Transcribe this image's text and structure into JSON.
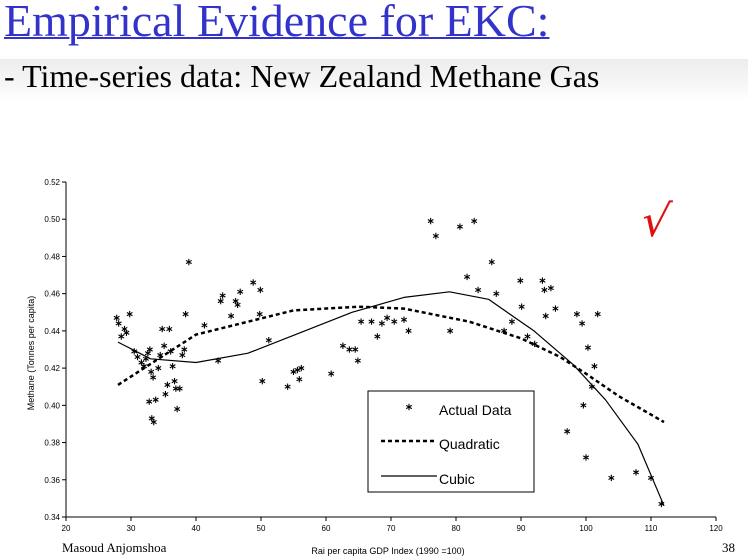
{
  "slide": {
    "title": "Empirical Evidence for EKC:",
    "subtitle": "- Time-series data: New Zealand Methane Gas",
    "author": "Masoud Anjomshoa",
    "slide_number": "38",
    "check_mark": "√"
  },
  "colors": {
    "title": "#3333cc",
    "check": "#e01010",
    "series": "#000000"
  },
  "chart_data": {
    "type": "scatter",
    "xlabel": "Rai per capita GDP Index (1990 =100)",
    "ylabel": "Methane (Tonnes per capita)",
    "xlim": [
      20,
      120
    ],
    "ylim": [
      0.34,
      0.52
    ],
    "x_ticks": [
      "20",
      "30",
      "40",
      "50",
      "60",
      "70",
      "80",
      "90",
      "100",
      "110",
      "120"
    ],
    "y_ticks": [
      "0.34",
      "0.36",
      "0.38",
      "0.40",
      "0.42",
      "0.44",
      "0.46",
      "0.48",
      "0.50",
      "0.52"
    ],
    "legend": {
      "placement": "bottom-center",
      "entries": [
        "Actual Data",
        "Quadratic",
        "Cubic"
      ]
    },
    "series": [
      {
        "name": "Actual Data",
        "marker": "asterisk",
        "points": [
          [
            27.8,
            0.447
          ],
          [
            28.1,
            0.444
          ],
          [
            28.5,
            0.437
          ],
          [
            29.0,
            0.441
          ],
          [
            29.3,
            0.439
          ],
          [
            29.8,
            0.449
          ],
          [
            30.5,
            0.429
          ],
          [
            31.0,
            0.426
          ],
          [
            31.6,
            0.423
          ],
          [
            32.0,
            0.421
          ],
          [
            32.3,
            0.425
          ],
          [
            32.6,
            0.428
          ],
          [
            32.9,
            0.43
          ],
          [
            33.1,
            0.418
          ],
          [
            33.4,
            0.415
          ],
          [
            32.8,
            0.402
          ],
          [
            33.2,
            0.393
          ],
          [
            33.5,
            0.391
          ],
          [
            33.8,
            0.403
          ],
          [
            34.2,
            0.42
          ],
          [
            34.5,
            0.427
          ],
          [
            34.8,
            0.441
          ],
          [
            35.1,
            0.432
          ],
          [
            35.3,
            0.406
          ],
          [
            35.6,
            0.411
          ],
          [
            35.9,
            0.441
          ],
          [
            36.1,
            0.429
          ],
          [
            36.4,
            0.421
          ],
          [
            36.7,
            0.413
          ],
          [
            36.9,
            0.409
          ],
          [
            37.1,
            0.398
          ],
          [
            37.5,
            0.409
          ],
          [
            37.9,
            0.427
          ],
          [
            38.2,
            0.43
          ],
          [
            38.4,
            0.449
          ],
          [
            38.9,
            0.477
          ],
          [
            41.3,
            0.443
          ],
          [
            43.4,
            0.424
          ],
          [
            43.8,
            0.456
          ],
          [
            44.1,
            0.459
          ],
          [
            45.4,
            0.448
          ],
          [
            46.1,
            0.456
          ],
          [
            46.4,
            0.454
          ],
          [
            46.8,
            0.461
          ],
          [
            48.8,
            0.466
          ],
          [
            49.8,
            0.449
          ],
          [
            49.9,
            0.462
          ],
          [
            50.2,
            0.413
          ],
          [
            51.2,
            0.435
          ],
          [
            54.1,
            0.41
          ],
          [
            55.0,
            0.418
          ],
          [
            55.6,
            0.419
          ],
          [
            55.9,
            0.414
          ],
          [
            56.2,
            0.42
          ],
          [
            60.8,
            0.417
          ],
          [
            62.6,
            0.432
          ],
          [
            63.6,
            0.43
          ],
          [
            64.5,
            0.43
          ],
          [
            64.9,
            0.424
          ],
          [
            65.4,
            0.445
          ],
          [
            67.0,
            0.445
          ],
          [
            67.9,
            0.437
          ],
          [
            68.6,
            0.444
          ],
          [
            69.4,
            0.447
          ],
          [
            70.5,
            0.445
          ],
          [
            72.0,
            0.446
          ],
          [
            72.7,
            0.44
          ],
          [
            76.1,
            0.499
          ],
          [
            76.9,
            0.491
          ],
          [
            79.1,
            0.44
          ],
          [
            80.6,
            0.496
          ],
          [
            81.7,
            0.469
          ],
          [
            82.8,
            0.499
          ],
          [
            83.4,
            0.462
          ],
          [
            85.5,
            0.477
          ],
          [
            86.2,
            0.46
          ],
          [
            87.4,
            0.44
          ],
          [
            88.6,
            0.445
          ],
          [
            89.9,
            0.467
          ],
          [
            90.1,
            0.453
          ],
          [
            91.0,
            0.437
          ],
          [
            92.1,
            0.433
          ],
          [
            93.3,
            0.467
          ],
          [
            93.6,
            0.462
          ],
          [
            93.8,
            0.448
          ],
          [
            94.6,
            0.463
          ],
          [
            95.3,
            0.452
          ],
          [
            97.1,
            0.386
          ],
          [
            98.6,
            0.449
          ],
          [
            99.4,
            0.444
          ],
          [
            99.6,
            0.4
          ],
          [
            100.0,
            0.372
          ],
          [
            100.3,
            0.431
          ],
          [
            100.9,
            0.41
          ],
          [
            101.3,
            0.421
          ],
          [
            101.8,
            0.449
          ],
          [
            103.9,
            0.361
          ],
          [
            107.7,
            0.364
          ],
          [
            110.0,
            0.361
          ],
          [
            111.6,
            0.347
          ]
        ]
      },
      {
        "name": "Quadratic",
        "style": "dashed",
        "points": [
          [
            28,
            0.411
          ],
          [
            40,
            0.438
          ],
          [
            55,
            0.451
          ],
          [
            65,
            0.453
          ],
          [
            72,
            0.452
          ],
          [
            82,
            0.445
          ],
          [
            90,
            0.436
          ],
          [
            96,
            0.426
          ],
          [
            100,
            0.417
          ],
          [
            105,
            0.405
          ],
          [
            112,
            0.391
          ]
        ]
      },
      {
        "name": "Cubic",
        "style": "solid",
        "points": [
          [
            28,
            0.434
          ],
          [
            33,
            0.425
          ],
          [
            40,
            0.423
          ],
          [
            48,
            0.428
          ],
          [
            56,
            0.439
          ],
          [
            64,
            0.45
          ],
          [
            72,
            0.458
          ],
          [
            79,
            0.461
          ],
          [
            85,
            0.457
          ],
          [
            92,
            0.44
          ],
          [
            98,
            0.422
          ],
          [
            103,
            0.403
          ],
          [
            108,
            0.379
          ],
          [
            112,
            0.346
          ]
        ]
      }
    ]
  }
}
